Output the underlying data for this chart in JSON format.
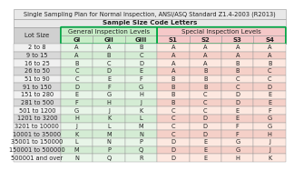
{
  "title": "Single Sampling Plan for Normal Inspection, ANSI/ASQ Standard Z1.4-2003 (R2013)",
  "subtitle": "Sample Size Code Letters",
  "col_headers_level2": [
    "Lot Size",
    "GI",
    "GII",
    "GIII",
    "S1",
    "S2",
    "S3",
    "S4"
  ],
  "rows": [
    [
      "2 to 8",
      "A",
      "A",
      "B",
      "A",
      "A",
      "A",
      "A"
    ],
    [
      "9 to 15",
      "A",
      "B",
      "C",
      "A",
      "A",
      "A",
      "A"
    ],
    [
      "16 to 25",
      "B",
      "C",
      "D",
      "A",
      "A",
      "B",
      "B"
    ],
    [
      "26 to 50",
      "C",
      "D",
      "E",
      "A",
      "B",
      "B",
      "C"
    ],
    [
      "51 to 90",
      "C",
      "E",
      "F",
      "B",
      "B",
      "C",
      "C"
    ],
    [
      "91 to 150",
      "D",
      "F",
      "G",
      "B",
      "B",
      "C",
      "D"
    ],
    [
      "151 to 280",
      "E",
      "G",
      "H",
      "B",
      "C",
      "D",
      "E"
    ],
    [
      "281 to 500",
      "F",
      "H",
      "J",
      "B",
      "C",
      "D",
      "E"
    ],
    [
      "501 to 1200",
      "G",
      "J",
      "K",
      "C",
      "C",
      "E",
      "F"
    ],
    [
      "1201 to 3200",
      "H",
      "K",
      "L",
      "C",
      "D",
      "E",
      "G"
    ],
    [
      "3201 to 10000",
      "J",
      "L",
      "M",
      "C",
      "D",
      "F",
      "G"
    ],
    [
      "10001 to 35000",
      "K",
      "M",
      "N",
      "C",
      "D",
      "F",
      "H"
    ],
    [
      "35001 to 150000",
      "L",
      "N",
      "P",
      "D",
      "E",
      "G",
      "J"
    ],
    [
      "150001 to 500000",
      "M",
      "P",
      "Q",
      "D",
      "E",
      "G",
      "J"
    ],
    [
      "500001 and over",
      "N",
      "Q",
      "R",
      "D",
      "E",
      "H",
      "K"
    ]
  ],
  "title_bg": "#e8e8e8",
  "subtitle_bg": "#e8e8e8",
  "lot_header_bg": "#d0d0d0",
  "general_header_bg": "#c8edc8",
  "special_header_bg": "#f5c8c8",
  "general_col_bg_light": "#e8f5e8",
  "general_col_bg_dark": "#d4ecd4",
  "special_col_bg_light": "#fde8e0",
  "special_col_bg_dark": "#f5d0c8",
  "lot_row_bg_light": "#f0f0f0",
  "lot_row_bg_dark": "#d8d8d8",
  "border_color": "#999999",
  "green_border": "#00aa44",
  "title_fontsize": 4.8,
  "subtitle_fontsize": 5.2,
  "header_fontsize": 5.0,
  "cell_fontsize": 4.8
}
